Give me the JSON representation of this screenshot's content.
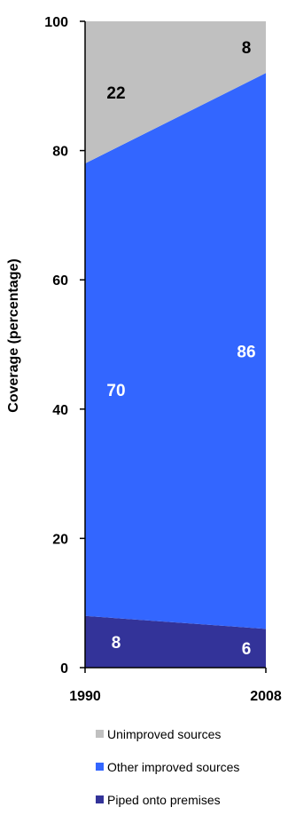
{
  "chart_data": {
    "type": "area",
    "stacked": true,
    "x": [
      "1990",
      "2008"
    ],
    "ylabel": "Coverage (percentage)",
    "xlabel": "",
    "ylim": [
      0,
      100
    ],
    "yticks": [
      0,
      20,
      40,
      60,
      80,
      100
    ],
    "grid": false,
    "legend_position": "bottom",
    "series": [
      {
        "name": "Piped onto premises",
        "values": [
          8,
          6
        ],
        "color": "#333399",
        "label_color": "#ffffff"
      },
      {
        "name": "Other improved sources",
        "values": [
          70,
          86
        ],
        "color": "#3366ff",
        "label_color": "#ffffff"
      },
      {
        "name": "Unimproved sources",
        "values": [
          22,
          8
        ],
        "color": "#c0c0c0",
        "label_color": "#000000"
      }
    ]
  }
}
